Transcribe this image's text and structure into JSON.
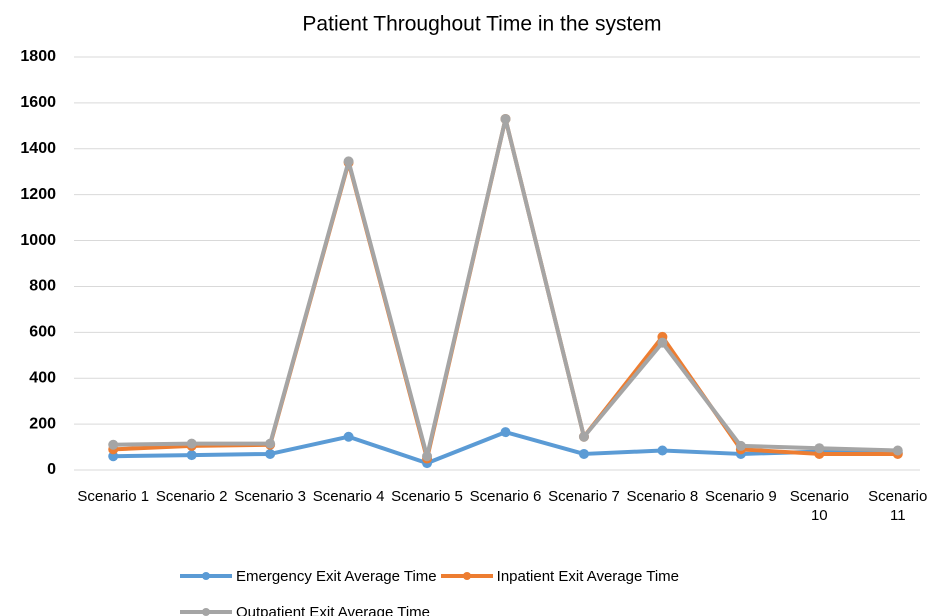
{
  "chart_data": {
    "type": "line",
    "title": "Patient Throughout Time in the system",
    "categories": [
      "Scenario 1",
      "Scenario 2",
      "Scenario 3",
      "Scenario 4",
      "Scenario 5",
      "Scenario 6",
      "Scenario 7",
      "Scenario 8",
      "Scenario 9",
      "Scenario 10",
      "Scenario 11"
    ],
    "series": [
      {
        "name": "Emergency Exit Average Time",
        "color": "#5b9bd5",
        "values": [
          60,
          65,
          70,
          145,
          30,
          165,
          70,
          85,
          70,
          80,
          75
        ]
      },
      {
        "name": "Inpatient Exit Average Time",
        "color": "#ed7d31",
        "values": [
          90,
          105,
          110,
          1340,
          50,
          1530,
          145,
          580,
          90,
          70,
          70
        ]
      },
      {
        "name": "Outpatient Exit Average Time",
        "color": "#a5a5a5",
        "values": [
          110,
          115,
          115,
          1345,
          60,
          1530,
          145,
          555,
          105,
          95,
          85
        ]
      }
    ],
    "ylim": [
      0,
      1800
    ],
    "yticks": [
      0,
      200,
      400,
      600,
      800,
      1000,
      1200,
      1400,
      1600,
      1800
    ],
    "grid": true
  }
}
